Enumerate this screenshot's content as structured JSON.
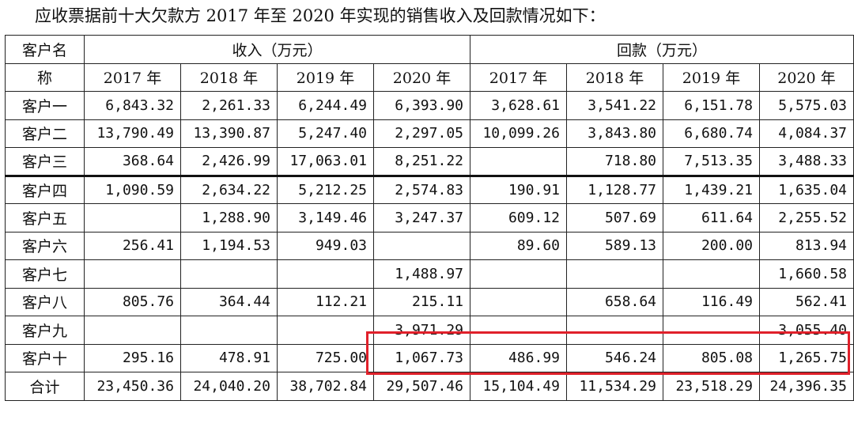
{
  "caption": "应收票据前十大欠款方 2017 年至 2020 年实现的销售收入及回款情况如下：",
  "header": {
    "customer_label_line1": "客户名",
    "customer_label_line2": "称",
    "income_group": "收入（万元）",
    "repay_group": "回款（万元）",
    "years": [
      "2017 年",
      "2018 年",
      "2019 年",
      "2020 年"
    ]
  },
  "rows": [
    {
      "name": "客户一",
      "income": [
        "6,843.32",
        "2,261.33",
        "6,244.49",
        "6,393.90"
      ],
      "repay": [
        "3,628.61",
        "3,541.22",
        "6,151.78",
        "5,575.03"
      ]
    },
    {
      "name": "客户二",
      "income": [
        "13,790.49",
        "13,390.87",
        "5,247.40",
        "2,297.05"
      ],
      "repay": [
        "10,099.26",
        "3,843.80",
        "6,680.74",
        "4,084.37"
      ]
    },
    {
      "name": "客户三",
      "income": [
        "368.64",
        "2,426.99",
        "17,063.01",
        "8,251.22"
      ],
      "repay": [
        "",
        "718.80",
        "7,513.35",
        "3,488.33"
      ]
    },
    {
      "name": "客户四",
      "income": [
        "1,090.59",
        "2,634.22",
        "5,212.25",
        "2,574.83"
      ],
      "repay": [
        "190.91",
        "1,128.77",
        "1,439.21",
        "1,635.04"
      ]
    },
    {
      "name": "客户五",
      "income": [
        "",
        "1,288.90",
        "3,149.46",
        "3,247.37"
      ],
      "repay": [
        "609.12",
        "507.69",
        "611.64",
        "2,255.52"
      ]
    },
    {
      "name": "客户六",
      "income": [
        "256.41",
        "1,194.53",
        "949.03",
        ""
      ],
      "repay": [
        "89.60",
        "589.13",
        "200.00",
        "813.94"
      ]
    },
    {
      "name": "客户七",
      "income": [
        "",
        "",
        "",
        "1,488.97"
      ],
      "repay": [
        "",
        "",
        "",
        "1,660.58"
      ]
    },
    {
      "name": "客户八",
      "income": [
        "805.76",
        "364.44",
        "112.21",
        "215.11"
      ],
      "repay": [
        "",
        "658.64",
        "116.49",
        "562.41"
      ]
    },
    {
      "name": "客户九",
      "income": [
        "",
        "",
        "",
        "3,971.29"
      ],
      "repay": [
        "",
        "",
        "",
        "3,055.40"
      ]
    },
    {
      "name": "客户十",
      "income": [
        "295.16",
        "478.91",
        "725.00",
        "1,067.73"
      ],
      "repay": [
        "486.99",
        "546.24",
        "805.08",
        "1,265.75"
      ]
    },
    {
      "name": "合计",
      "income": [
        "23,450.36",
        "24,040.20",
        "38,702.84",
        "29,507.46"
      ],
      "repay": [
        "15,104.49",
        "11,534.29",
        "23,518.29",
        "24,396.35"
      ]
    }
  ],
  "colors": {
    "highlight": "#e0202a",
    "border": "#222222"
  }
}
